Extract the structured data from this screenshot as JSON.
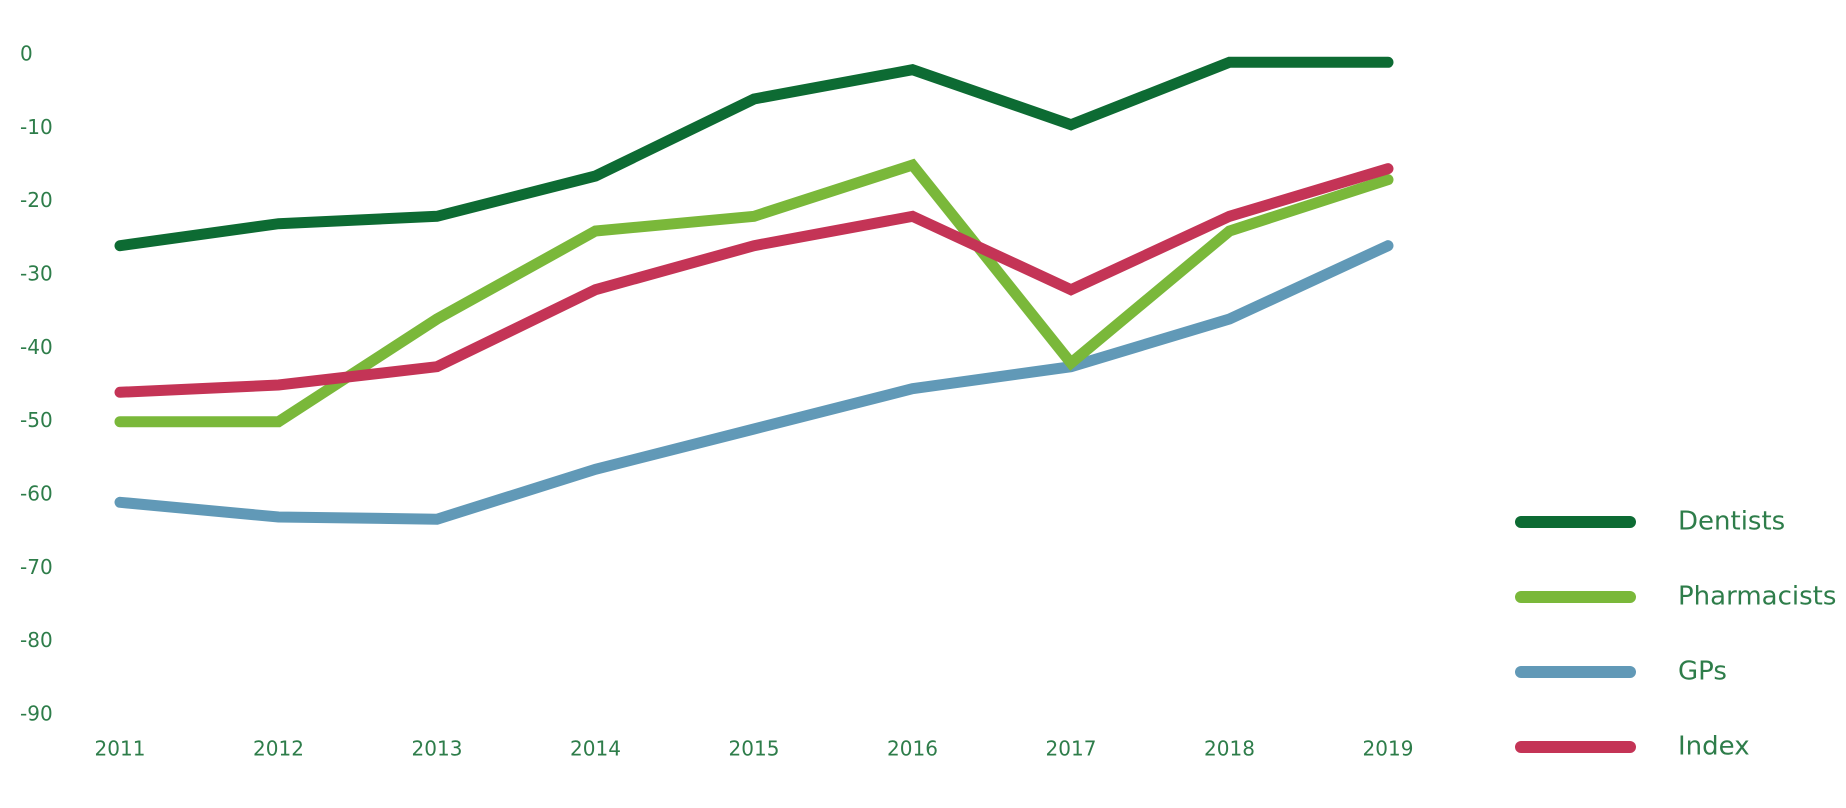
{
  "chart_data": {
    "type": "line",
    "title": "",
    "xlabel": "",
    "ylabel": "",
    "x": [
      "2011",
      "2012",
      "2013",
      "2014",
      "2015",
      "2016",
      "2017",
      "2018",
      "2019"
    ],
    "ylim": [
      -90,
      0
    ],
    "yticks": [
      "0",
      "-10",
      "-20",
      "-30",
      "-40",
      "-50",
      "-60",
      "-70",
      "-80",
      "-90"
    ],
    "grid": false,
    "legend_position": "bottom-right",
    "series": [
      {
        "name": "Dentists",
        "color": "#0d6b33",
        "values": [
          -26,
          -23,
          -22,
          -16.5,
          -6,
          -2,
          -9.5,
          -1,
          -1
        ]
      },
      {
        "name": "Pharmacists",
        "color": "#7ab83a",
        "values": [
          -50,
          -50,
          -36,
          -24,
          -22,
          -15,
          -42,
          -24,
          -17
        ]
      },
      {
        "name": "GPs",
        "color": "#6199b7",
        "values": [
          -61,
          -63,
          -63.3,
          -56.5,
          -51,
          -45.5,
          -42.5,
          -36,
          -26
        ]
      },
      {
        "name": "Index",
        "color": "#c43456",
        "values": [
          -46,
          -45,
          -42.5,
          -32,
          -26,
          -22,
          -32,
          -22,
          -15.5
        ]
      }
    ]
  }
}
